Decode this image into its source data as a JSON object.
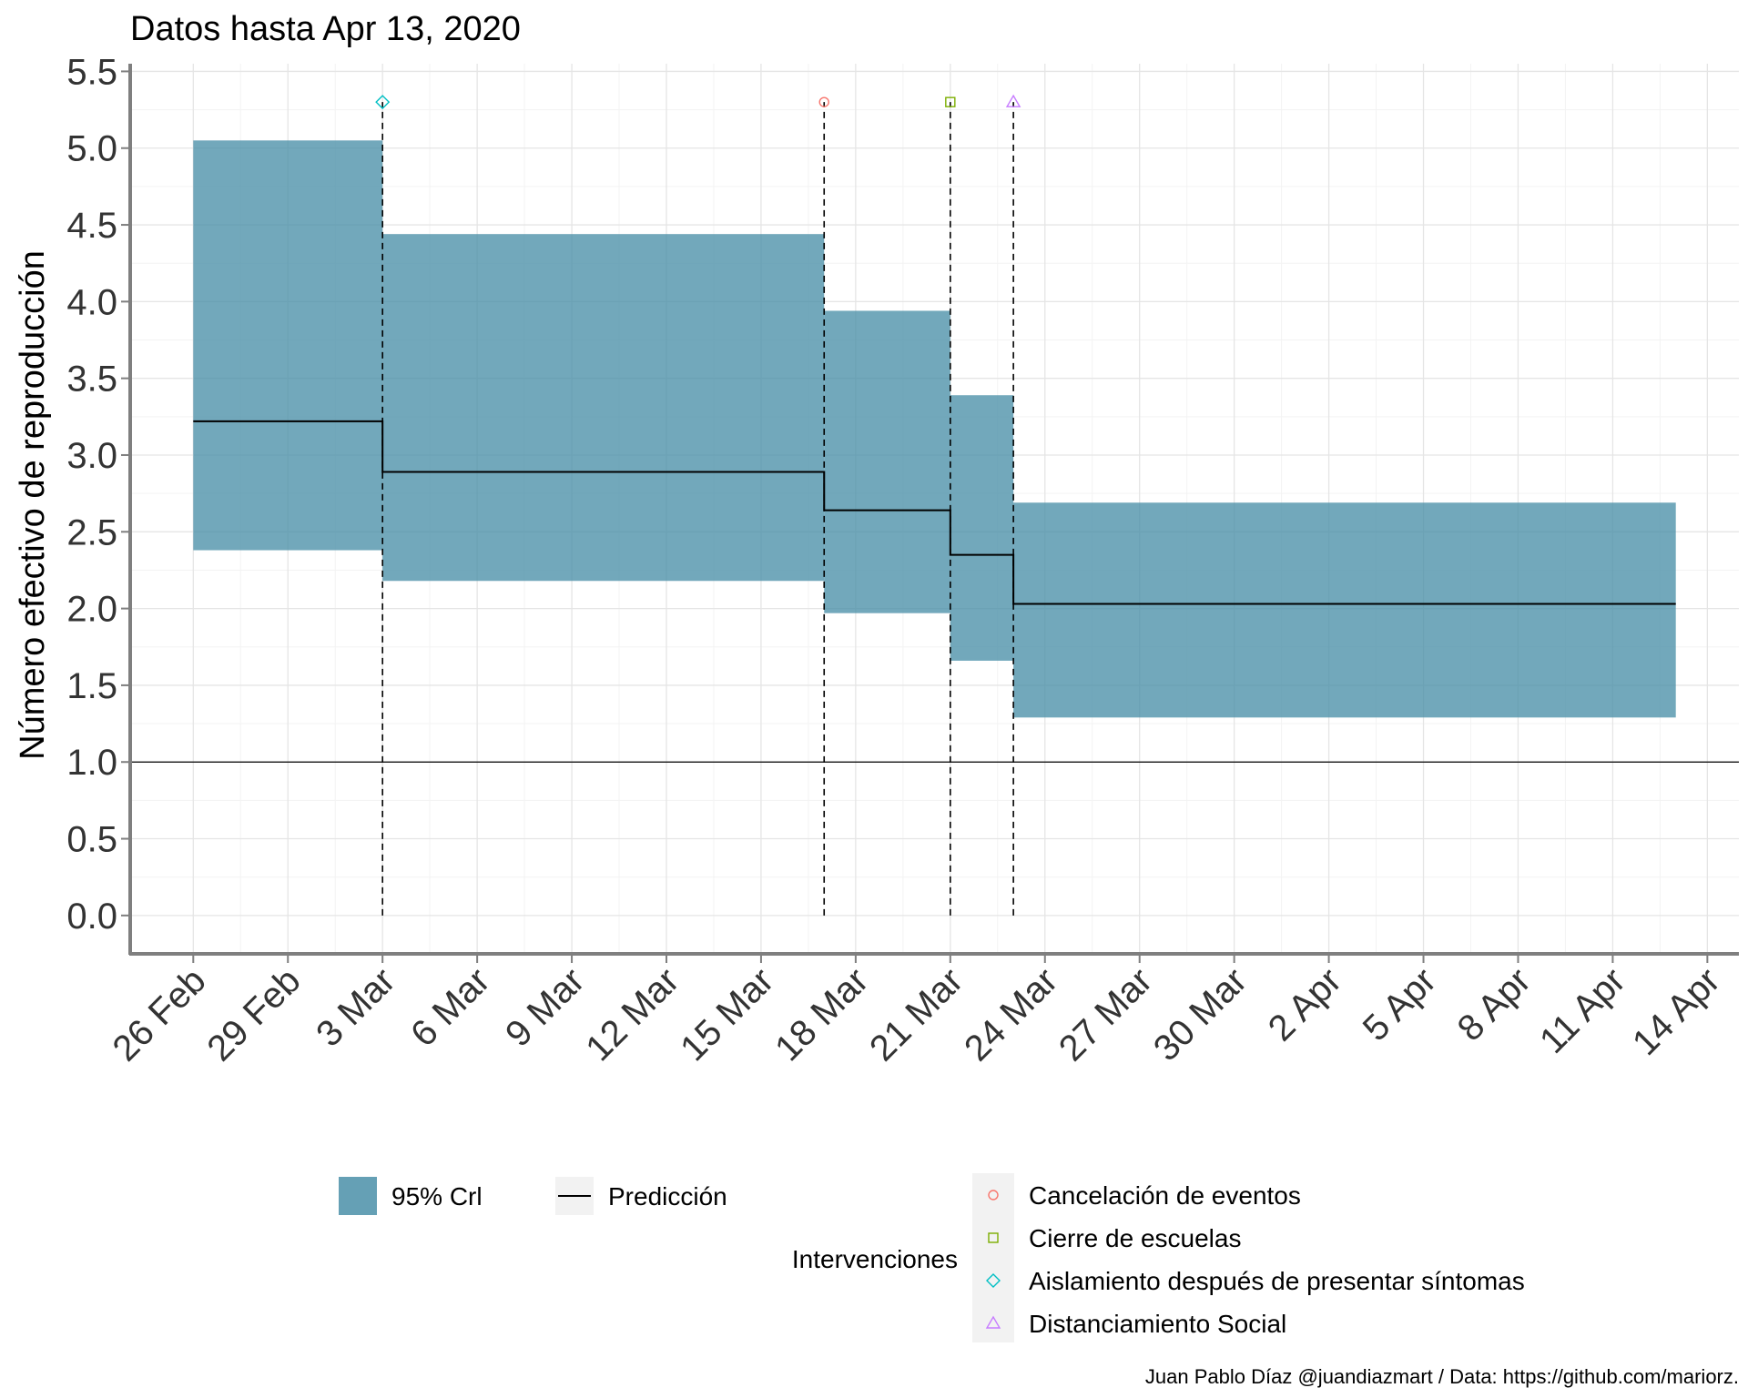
{
  "chart_data": {
    "type": "step-area",
    "title": "Datos hasta Apr 13, 2020",
    "ylabel": "Número efectivo de reproducción",
    "xlabel": "",
    "ylim": [
      -0.25,
      5.55
    ],
    "xlim": [
      "2020-02-24",
      "2020-04-15"
    ],
    "grid": true,
    "yticks": [
      "0.0",
      "0.5",
      "1.0",
      "1.5",
      "2.0",
      "2.5",
      "3.0",
      "3.5",
      "4.0",
      "4.5",
      "5.0",
      "5.5"
    ],
    "xticks": [
      {
        "date": "2020-02-26",
        "label": "26 Feb"
      },
      {
        "date": "2020-02-29",
        "label": "29 Feb"
      },
      {
        "date": "2020-03-03",
        "label": "3 Mar"
      },
      {
        "date": "2020-03-06",
        "label": "6 Mar"
      },
      {
        "date": "2020-03-09",
        "label": "9 Mar"
      },
      {
        "date": "2020-03-12",
        "label": "12 Mar"
      },
      {
        "date": "2020-03-15",
        "label": "15 Mar"
      },
      {
        "date": "2020-03-18",
        "label": "18 Mar"
      },
      {
        "date": "2020-03-21",
        "label": "21 Mar"
      },
      {
        "date": "2020-03-24",
        "label": "24 Mar"
      },
      {
        "date": "2020-03-27",
        "label": "27 Mar"
      },
      {
        "date": "2020-03-30",
        "label": "30 Mar"
      },
      {
        "date": "2020-04-02",
        "label": "2 Apr"
      },
      {
        "date": "2020-04-05",
        "label": "5 Apr"
      },
      {
        "date": "2020-04-08",
        "label": "8 Apr"
      },
      {
        "date": "2020-04-11",
        "label": "11 Apr"
      },
      {
        "date": "2020-04-14",
        "label": "14 Apr"
      }
    ],
    "reference_line": 1.0,
    "segments": [
      {
        "start": "2020-02-26",
        "end": "2020-03-03",
        "lower": 2.38,
        "upper": 5.05,
        "prediction": 3.22
      },
      {
        "start": "2020-03-03",
        "end": "2020-03-17",
        "lower": 2.18,
        "upper": 4.44,
        "prediction": 2.89
      },
      {
        "start": "2020-03-17",
        "end": "2020-03-21",
        "lower": 1.97,
        "upper": 3.94,
        "prediction": 2.64
      },
      {
        "start": "2020-03-21",
        "end": "2020-03-23",
        "lower": 1.66,
        "upper": 3.39,
        "prediction": 2.35
      },
      {
        "start": "2020-03-23",
        "end": "2020-04-13",
        "lower": 1.29,
        "upper": 2.69,
        "prediction": 2.03
      }
    ],
    "interventions": [
      {
        "name": "Aislamiento después de presentar síntomas",
        "date": "2020-03-03",
        "shape": "diamond",
        "color": "#00bfc4"
      },
      {
        "name": "Cancelación de eventos",
        "date": "2020-03-17",
        "shape": "circle",
        "color": "#f8766d"
      },
      {
        "name": "Cierre de escuelas",
        "date": "2020-03-21",
        "shape": "square",
        "color": "#7cae00"
      },
      {
        "name": "Distanciamiento Social",
        "date": "2020-03-23",
        "shape": "triangle",
        "color": "#c77cff"
      }
    ],
    "marker_value": 5.3,
    "band_color": "#4a8fa8",
    "legend": {
      "band_label": "95% Crl",
      "line_label": "Predicción",
      "interventions_title": "Intervenciones",
      "placement": "bottom",
      "interventions_order": [
        "Cancelación de eventos",
        "Cierre de escuelas",
        "Aislamiento después de presentar síntomas",
        "Distanciamiento Social"
      ]
    }
  },
  "caption": "Juan Pablo Díaz @juandiazmart / Data: https://github.com/mariorz."
}
